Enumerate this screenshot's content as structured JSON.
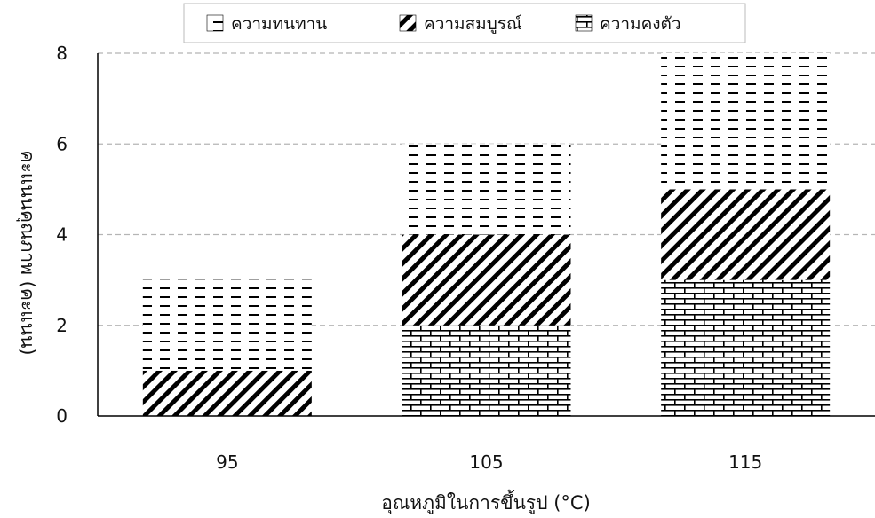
{
  "chart_data": {
    "type": "bar",
    "stacked": true,
    "categories": [
      "95",
      "105",
      "115"
    ],
    "series": [
      {
        "name": "ความคงตัว",
        "values": [
          0,
          2,
          3
        ],
        "pattern": "brick",
        "color": "#000000"
      },
      {
        "name": "ความสมบูรณ์",
        "values": [
          1,
          2,
          2
        ],
        "pattern": "diagonal",
        "color": "#000000"
      },
      {
        "name": "ความทนทาน",
        "values": [
          2,
          2,
          3
        ],
        "pattern": "dashed-horizontal",
        "color": "#000000"
      }
    ],
    "legend_order": [
      "ความทนทาน",
      "ความสมบูรณ์",
      "ความคงตัว"
    ],
    "legend_position": "top",
    "xlabel": "อุณหภูมิในการขึ้นรูป (°C)",
    "ylabel": "คะแนนคุณภาพ (คะแนน)",
    "ylim": [
      0,
      8
    ],
    "yticks": [
      0,
      2,
      4,
      6,
      8
    ],
    "grid": "horizontal-dashed"
  }
}
